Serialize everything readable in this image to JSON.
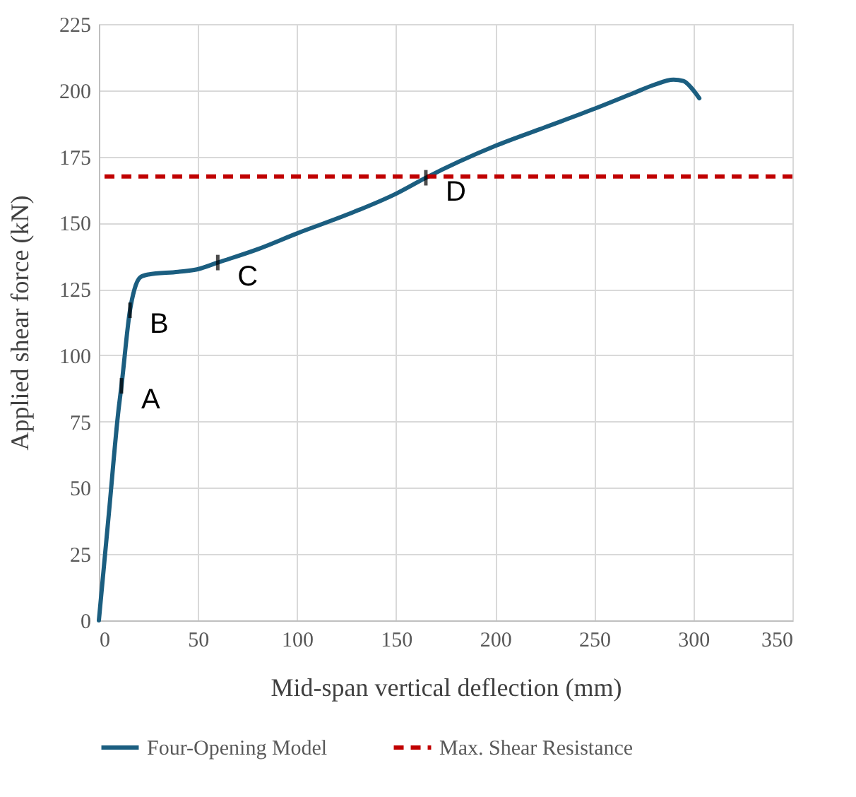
{
  "chart_data": {
    "type": "line",
    "xlabel": "Mid-span vertical deflection (mm)",
    "ylabel": "Applied shear force (kN)",
    "series": [
      {
        "name": "Four-Opening Model",
        "color": "#1b5e80",
        "x": [
          0,
          5,
          10,
          11.4,
          15.7,
          18,
          21,
          25,
          40,
          50,
          60,
          80,
          100,
          125,
          150,
          165,
          200,
          225,
          250,
          270,
          280,
          290,
          295,
          300,
          303
        ],
        "values": [
          0,
          40,
          80,
          88.5,
          117,
          125,
          129.5,
          130.5,
          131.5,
          132.5,
          135,
          140,
          146,
          153,
          161,
          167,
          179,
          186,
          193,
          199,
          202,
          204,
          203.5,
          200,
          197
        ]
      }
    ],
    "ref_lines": [
      {
        "axis": "y",
        "value": 167.5,
        "label": "Max. Shear Resistance",
        "color": "#c00000",
        "line_style": "dashed"
      }
    ],
    "annotations": [
      {
        "text": "A",
        "x": 11.4,
        "y": 88.5
      },
      {
        "text": "B",
        "x": 15.7,
        "y": 117
      },
      {
        "text": "C",
        "x": 60,
        "y": 135
      },
      {
        "text": "D",
        "x": 165,
        "y": 167
      }
    ],
    "xlim": [
      0,
      350
    ],
    "xticks": [
      0,
      50,
      100,
      150,
      200,
      250,
      300,
      350
    ],
    "ylim": [
      0,
      225
    ],
    "yticks": [
      0,
      25,
      50,
      75,
      100,
      125,
      150,
      175,
      200,
      225
    ],
    "grid": true,
    "legend": "bottom",
    "marker": "none",
    "line_style": "solid"
  }
}
